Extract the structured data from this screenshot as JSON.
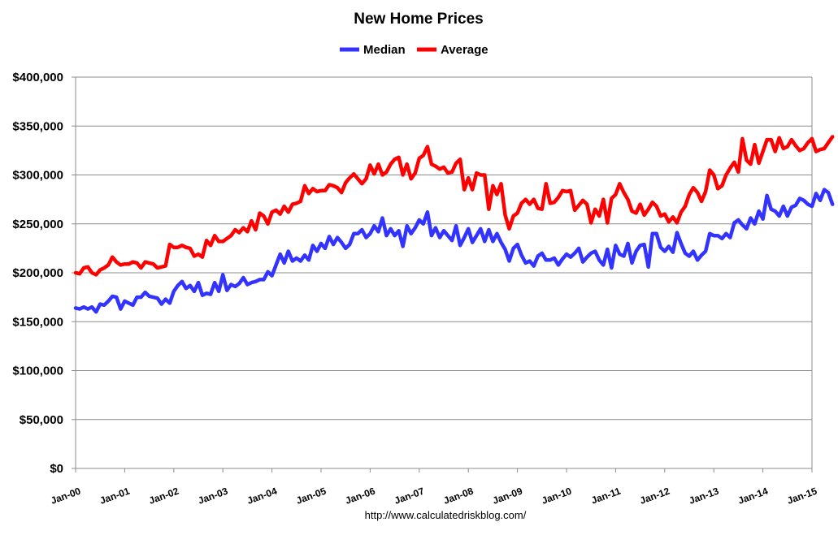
{
  "chart_data": {
    "type": "line",
    "title": "New Home Prices",
    "source": "http://www.calculatedriskblog.com/",
    "legend_position": "top",
    "grid": true,
    "xlabel": "",
    "ylabel": "",
    "ylim": [
      0,
      400000
    ],
    "yticks": [
      0,
      50000,
      100000,
      150000,
      200000,
      250000,
      300000,
      350000,
      400000
    ],
    "ytick_labels": [
      "$0",
      "$50,000",
      "$100,000",
      "$150,000",
      "$200,000",
      "$250,000",
      "$300,000",
      "$350,000",
      "$400,000"
    ],
    "xlim": [
      "2000-01",
      "2015-01"
    ],
    "xtick_labels": [
      "Jan-00",
      "Jan-01",
      "Jan-02",
      "Jan-03",
      "Jan-04",
      "Jan-05",
      "Jan-06",
      "Jan-07",
      "Jan-08",
      "Jan-09",
      "Jan-10",
      "Jan-11",
      "Jan-12",
      "Jan-13",
      "Jan-14",
      "Jan-15"
    ],
    "x_start": "2000-01",
    "frequency": "monthly",
    "series": [
      {
        "name": "Median",
        "color": "#3333ff",
        "values": [
          164000,
          163000,
          165000,
          163000,
          165000,
          160000,
          168000,
          167000,
          171000,
          176000,
          175000,
          163000,
          171000,
          169000,
          167000,
          175000,
          175000,
          180000,
          176000,
          175000,
          174000,
          168000,
          173000,
          169000,
          181000,
          187000,
          191000,
          184000,
          187000,
          181000,
          190000,
          177000,
          179000,
          178000,
          190000,
          181000,
          198000,
          182000,
          188000,
          186000,
          189000,
          195000,
          188000,
          190000,
          191000,
          193000,
          193000,
          201000,
          197000,
          208000,
          219000,
          210000,
          222000,
          212000,
          215000,
          212000,
          218000,
          213000,
          228000,
          222000,
          230000,
          225000,
          237000,
          229000,
          236000,
          231000,
          225000,
          229000,
          240000,
          240000,
          244000,
          236000,
          240000,
          248000,
          242000,
          256000,
          238000,
          245000,
          238000,
          243000,
          227000,
          248000,
          240000,
          246000,
          254000,
          250000,
          262000,
          238000,
          246000,
          236000,
          243000,
          238000,
          233000,
          248000,
          228000,
          236000,
          245000,
          231000,
          238000,
          245000,
          232000,
          244000,
          232000,
          240000,
          231000,
          224000,
          212000,
          225000,
          229000,
          218000,
          210000,
          212000,
          207000,
          217000,
          220000,
          213000,
          213000,
          215000,
          208000,
          214000,
          219000,
          216000,
          220000,
          225000,
          211000,
          216000,
          220000,
          222000,
          213000,
          208000,
          224000,
          205000,
          228000,
          219000,
          217000,
          230000,
          210000,
          222000,
          228000,
          229000,
          206000,
          240000,
          240000,
          226000,
          222000,
          227000,
          221000,
          241000,
          230000,
          220000,
          217000,
          222000,
          213000,
          218000,
          222000,
          240000,
          238000,
          238000,
          235000,
          240000,
          236000,
          251000,
          254000,
          249000,
          245000,
          256000,
          250000,
          263000,
          255000,
          279000,
          265000,
          263000,
          258000,
          268000,
          258000,
          267000,
          269000,
          276000,
          274000,
          270000,
          268000,
          281000,
          274000,
          285000,
          282000,
          270000
        ]
      },
      {
        "name": "Average",
        "color": "#ff0000",
        "values": [
          200000,
          199000,
          205000,
          206000,
          200000,
          198000,
          203000,
          205000,
          208000,
          216000,
          211000,
          208000,
          209000,
          209000,
          211000,
          210000,
          205000,
          211000,
          210000,
          209000,
          205000,
          206000,
          207000,
          229000,
          226000,
          226000,
          228000,
          226000,
          225000,
          217000,
          219000,
          216000,
          233000,
          228000,
          238000,
          232000,
          232000,
          235000,
          238000,
          244000,
          241000,
          246000,
          242000,
          253000,
          244000,
          261000,
          258000,
          250000,
          262000,
          264000,
          260000,
          268000,
          262000,
          270000,
          271000,
          273000,
          289000,
          281000,
          286000,
          283000,
          284000,
          284000,
          290000,
          289000,
          287000,
          282000,
          292000,
          297000,
          301000,
          296000,
          291000,
          296000,
          310000,
          301000,
          311000,
          300000,
          303000,
          311000,
          316000,
          318000,
          300000,
          311000,
          296000,
          302000,
          317000,
          320000,
          329000,
          311000,
          309000,
          306000,
          308000,
          302000,
          303000,
          312000,
          316000,
          285000,
          297000,
          285000,
          302000,
          300000,
          300000,
          265000,
          289000,
          280000,
          291000,
          259000,
          245000,
          258000,
          261000,
          271000,
          275000,
          270000,
          275000,
          266000,
          265000,
          291000,
          271000,
          272000,
          277000,
          284000,
          283000,
          284000,
          264000,
          269000,
          274000,
          270000,
          251000,
          265000,
          258000,
          275000,
          251000,
          276000,
          280000,
          291000,
          282000,
          275000,
          263000,
          261000,
          270000,
          259000,
          265000,
          272000,
          268000,
          258000,
          260000,
          252000,
          257000,
          251000,
          262000,
          268000,
          280000,
          287000,
          282000,
          273000,
          283000,
          305000,
          300000,
          286000,
          289000,
          300000,
          307000,
          313000,
          303000,
          337000,
          315000,
          311000,
          331000,
          312000,
          324000,
          336000,
          336000,
          324000,
          338000,
          327000,
          329000,
          336000,
          330000,
          325000,
          327000,
          333000,
          337000,
          324000,
          326000,
          327000,
          333000,
          339000
        ]
      }
    ]
  }
}
